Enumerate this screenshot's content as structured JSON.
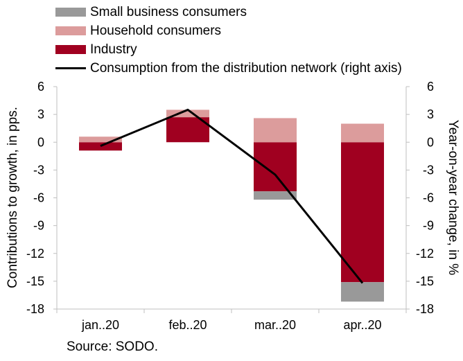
{
  "chart_data": {
    "type": "bar",
    "categories": [
      "jan..20",
      "feb..20",
      "mar..20",
      "apr..20"
    ],
    "series": [
      {
        "name": "Industry",
        "kind": "stacked-bar",
        "color": "#a00020",
        "values": [
          -0.9,
          2.7,
          -5.3,
          -15.1
        ]
      },
      {
        "name": "Household consumers",
        "kind": "stacked-bar",
        "color": "#dc9c9c",
        "values": [
          0.6,
          0.8,
          2.6,
          2.0
        ]
      },
      {
        "name": "Small business consumers",
        "kind": "stacked-bar",
        "color": "#999999",
        "values": [
          0.0,
          0.0,
          -0.9,
          -2.1
        ]
      },
      {
        "name": "Consumption from the distribution network (right axis)",
        "kind": "line",
        "axis": "right",
        "color": "#000000",
        "values": [
          -0.4,
          3.5,
          -3.5,
          -15.2
        ]
      }
    ],
    "legend_order": [
      "Small business consumers",
      "Household consumers",
      "Industry",
      "Consumption from the distribution network (right axis)"
    ],
    "ylabel": "Contributions to growth, in pps.",
    "ylabel_right": "Year-on-year change, in %",
    "ylim": [
      -18,
      6
    ],
    "yticks": [
      "6",
      "3",
      "0",
      "-3",
      "-6",
      "-9",
      "-12",
      "-15",
      "-18"
    ],
    "ylim_right": [
      -18,
      6
    ],
    "yticks_right": [
      "6",
      "3",
      "0",
      "-3",
      "-6",
      "-9",
      "-12",
      "-15",
      "-18"
    ],
    "grid": false,
    "legend_position": "top"
  },
  "source": "Source: SODO."
}
